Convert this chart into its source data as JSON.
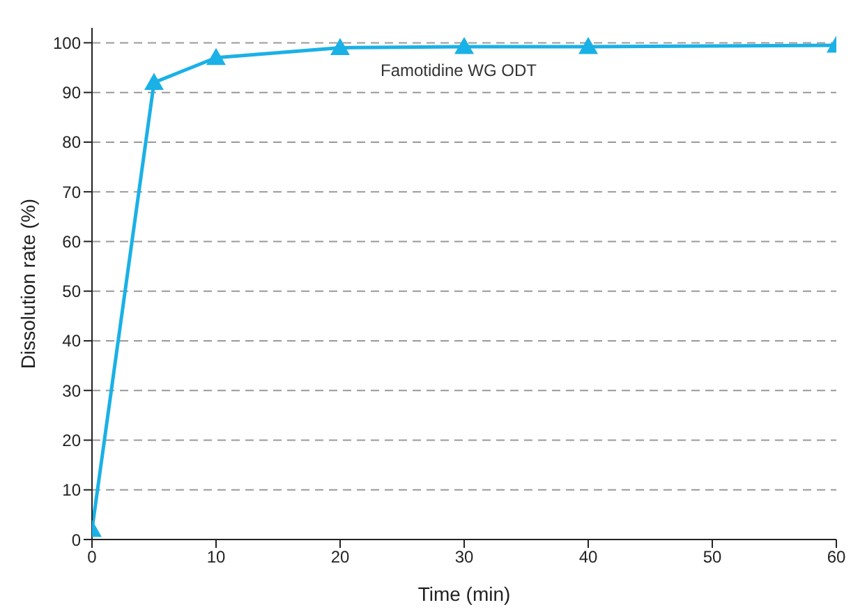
{
  "chart_data": {
    "type": "line",
    "xlabel": "Time (min)",
    "ylabel": "Dissolution rate (%)",
    "x": [
      0,
      5,
      10,
      20,
      30,
      40,
      60
    ],
    "series": [
      {
        "name": "Famotidine WG ODT",
        "color": "#1ab1e6",
        "values": [
          2,
          92,
          97,
          99,
          99.2,
          99.2,
          99.5
        ]
      }
    ],
    "xlim": [
      0,
      60
    ],
    "xticks": [
      0,
      10,
      20,
      30,
      40,
      50,
      60
    ],
    "ylim": [
      0,
      103
    ],
    "yticks": [
      0,
      10,
      20,
      30,
      40,
      50,
      60,
      70,
      80,
      90,
      100
    ],
    "grid": "y",
    "marker": "triangle",
    "line_style": "solid"
  }
}
